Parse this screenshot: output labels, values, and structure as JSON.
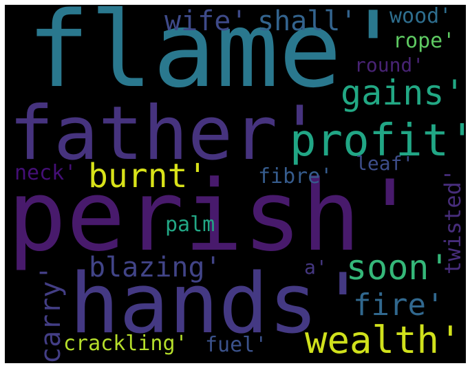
{
  "words": [
    {
      "id": "flame",
      "text": "flame'",
      "color": "#2a788e"
    },
    {
      "id": "father",
      "text": "father'",
      "color": "#46337e"
    },
    {
      "id": "perish",
      "text": "perish'",
      "color": "#481a6c"
    },
    {
      "id": "hands",
      "text": "hands'",
      "color": "#443983"
    },
    {
      "id": "wealth",
      "text": "wealth'",
      "color": "#d0e11c"
    },
    {
      "id": "profit",
      "text": "profit'",
      "color": "#21a685"
    },
    {
      "id": "gains",
      "text": "gains'",
      "color": "#22a884"
    },
    {
      "id": "burnt",
      "text": "burnt'",
      "color": "#d8e219"
    },
    {
      "id": "soon",
      "text": "soon'",
      "color": "#35b779"
    },
    {
      "id": "fire",
      "text": "fire'",
      "color": "#31688e"
    },
    {
      "id": "blazing",
      "text": "blazing'",
      "color": "#414487"
    },
    {
      "id": "shall",
      "text": "shall'",
      "color": "#33638d"
    },
    {
      "id": "wife",
      "text": "wife'",
      "color": "#3e4a89"
    },
    {
      "id": "crackling",
      "text": "crackling'",
      "color": "#b5de2b"
    },
    {
      "id": "carry",
      "text": "carry'",
      "color": "#433e85"
    },
    {
      "id": "twisted",
      "text": "twisted'",
      "color": "#472d7b"
    },
    {
      "id": "wood",
      "text": "wood'",
      "color": "#2e6e8e"
    },
    {
      "id": "fibre",
      "text": "fibre'",
      "color": "#365c8d"
    },
    {
      "id": "fuel",
      "text": "fuel'",
      "color": "#3b528b"
    },
    {
      "id": "palm",
      "text": "palm",
      "color": "#22a785"
    },
    {
      "id": "leaf",
      "text": "leaf'",
      "color": "#3d4d8a"
    },
    {
      "id": "neck",
      "text": "neck'",
      "color": "#440f76"
    },
    {
      "id": "round",
      "text": "round'",
      "color": "#482374"
    },
    {
      "id": "rope",
      "text": "rope'",
      "color": "#5ec962"
    },
    {
      "id": "a",
      "text": "a'",
      "color": "#453781"
    }
  ]
}
